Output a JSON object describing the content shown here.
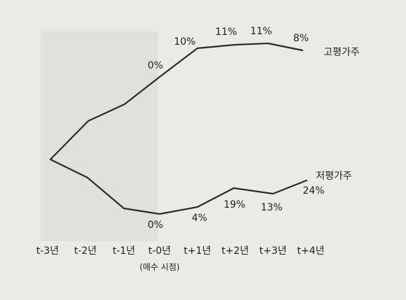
{
  "chart_data": {
    "type": "line",
    "title": "",
    "xlabel": "",
    "ylabel": "",
    "categories": [
      "t-3년",
      "t-2년",
      "t-1년",
      "t-0년",
      "t+1년",
      "t+2년",
      "t+3년",
      "t+4년"
    ],
    "category_sublabel": {
      "index": 3,
      "text": "(매수 시점)"
    },
    "series": [
      {
        "name": "고평가주",
        "data_labels": [
          {
            "x": "t-0년",
            "text": "0%"
          },
          {
            "x": "t+1년",
            "text": "10%"
          },
          {
            "x": "t+2년",
            "text": "11%"
          },
          {
            "x": "t+3년",
            "text": "11%"
          },
          {
            "x": "t+4년",
            "text": "8%"
          }
        ]
      },
      {
        "name": "저평가주",
        "data_labels": [
          {
            "x": "t-0년",
            "text": "0%"
          },
          {
            "x": "t+1년",
            "text": "4%"
          },
          {
            "x": "t+2년",
            "text": "19%"
          },
          {
            "x": "t+3년",
            "text": "13%"
          },
          {
            "x": "t+4년",
            "text": "24%"
          }
        ]
      }
    ],
    "legend": "right, inline at line ends",
    "grid": false,
    "axes_visible": false,
    "line_color": "#2a2a2a"
  }
}
